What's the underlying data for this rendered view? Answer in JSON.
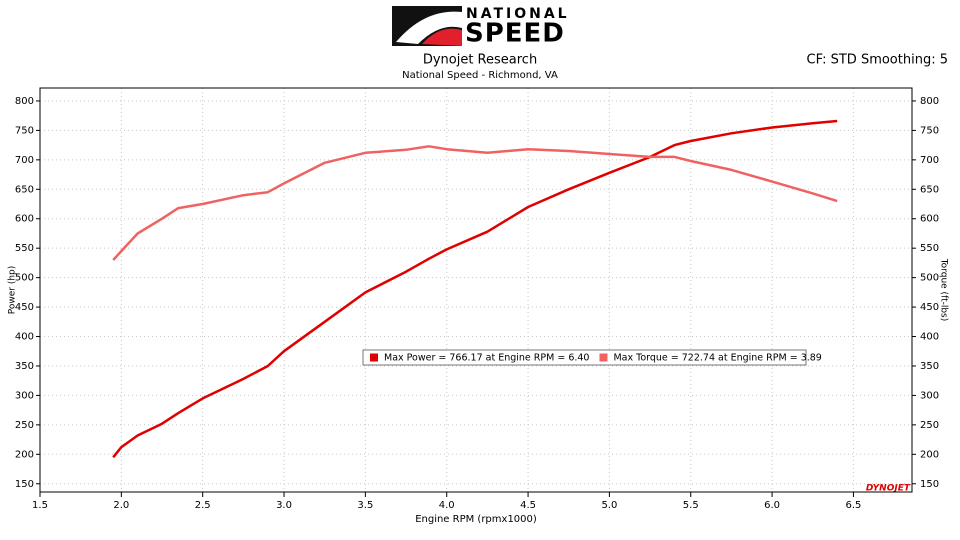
{
  "logo": {
    "line1": "NATIONAL",
    "line2": "SPEED"
  },
  "watermark": "DYNOJET",
  "chart_data": {
    "type": "line",
    "title": "Dynojet Research",
    "subtitle": "National Speed - Richmond, VA",
    "annotation": "CF: STD Smoothing: 5",
    "x_label": "Engine RPM (rpmx1000)",
    "y_label": "Power (hp)",
    "y2_label": "Torque (ft-lbs)",
    "x": [
      1.95,
      2.0,
      2.1,
      2.25,
      2.35,
      2.5,
      2.75,
      2.9,
      3.0,
      3.25,
      3.5,
      3.75,
      3.89,
      4.0,
      4.25,
      4.5,
      4.75,
      5.0,
      5.25,
      5.4,
      5.5,
      5.75,
      6.0,
      6.25,
      6.4
    ],
    "series": [
      {
        "name": "Max Power = 766.17 at Engine RPM = 6.40",
        "color": "#e00000",
        "values": [
          195,
          212,
          232,
          252,
          270,
          295,
          328,
          350,
          375,
          425,
          475,
          510,
          532,
          548,
          578,
          620,
          650,
          678,
          705,
          725,
          732,
          745,
          755,
          762,
          766
        ]
      },
      {
        "name": "Max Torque = 722.74 at Engine RPM = 3.89",
        "color": "#f06262",
        "axis": "y2",
        "values": [
          530,
          545,
          575,
          600,
          618,
          625,
          640,
          645,
          660,
          695,
          712,
          717,
          723,
          718,
          712,
          718,
          715,
          710,
          705,
          705,
          698,
          683,
          663,
          643,
          630
        ]
      }
    ],
    "xlim": [
      1.5,
      6.86
    ],
    "xticks": [
      1.5,
      {
        "value": 2,
        "label": "2.0"
      },
      2.5,
      {
        "value": 3,
        "label": "3.0"
      },
      3.5,
      {
        "value": 4,
        "label": "4.0"
      },
      4.5,
      {
        "value": 5,
        "label": "5.0"
      },
      5.5,
      {
        "value": 6,
        "label": "6.0"
      },
      6.5
    ],
    "ylim": [
      136,
      822
    ],
    "yticks": [
      150,
      200,
      250,
      300,
      350,
      400,
      450,
      500,
      550,
      600,
      650,
      700,
      750,
      800
    ],
    "y2lim": [
      136,
      822
    ],
    "y2ticks": [
      150,
      200,
      250,
      300,
      350,
      400,
      450,
      500,
      550,
      600,
      650,
      700,
      750,
      800
    ],
    "grid": true
  }
}
